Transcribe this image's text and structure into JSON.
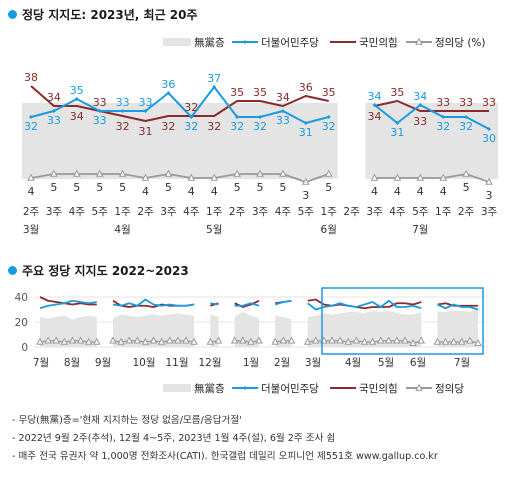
{
  "colors": {
    "dpk": "#1a9be0",
    "ppp": "#8b2a2a",
    "justice": "#999999",
    "none": "#e4e4e4",
    "box": "#1a9be0"
  },
  "titles": {
    "top": "정당 지지도: 2023년, 최근 20주",
    "bottom": "주요 정당 지지도 2022~2023"
  },
  "legend": [
    "無黨층",
    "더불어민주당",
    "국민의힘",
    "정의당 (%)"
  ],
  "legend_bottom": [
    "無黨층",
    "더불어민주당",
    "국민의힘",
    "정의당"
  ],
  "notes": [
    "- 무당(無黨)층='현재 지지하는 정당 없음/모름/응답거절'",
    "- 2022년 9월 2주(추석), 12월 4~5주, 2023년 1월 4주(설), 6월 2주 조사 쉼",
    "- 매주 전국 유권자 약 1,000명 전화조사(CATI). 한국갤럽 데일리 오피니언 제551호 www.gallup.co.kr"
  ],
  "chart_data": [
    {
      "type": "line",
      "title": "정당 지지도: 2023년, 최근 20주",
      "x": [
        "2주",
        "3주",
        "4주",
        "5주",
        "1주",
        "2주",
        "3주",
        "4주",
        "1주",
        "2주",
        "3주",
        "4주",
        "5주",
        "1주",
        "2주",
        "3주",
        "4주",
        "5주",
        "1주",
        "2주",
        "3주"
      ],
      "month_labels": [
        {
          "at": 0,
          "label": "3월"
        },
        {
          "at": 4,
          "label": "4월"
        },
        {
          "at": 8,
          "label": "5월"
        },
        {
          "at": 13,
          "label": "6월"
        },
        {
          "at": 17,
          "label": "7월"
        }
      ],
      "series": [
        {
          "name": "더불어민주당",
          "values": [
            32,
            33,
            35,
            33,
            33,
            33,
            36,
            32,
            37,
            32,
            32,
            33,
            31,
            32,
            null,
            34,
            31,
            34,
            32,
            32,
            30
          ]
        },
        {
          "name": "국민의힘",
          "values": [
            38,
            34,
            34,
            33,
            32,
            31,
            32,
            32,
            32,
            35,
            35,
            34,
            36,
            35,
            null,
            34,
            35,
            33,
            33,
            33,
            33
          ]
        },
        {
          "name": "정의당",
          "values": [
            4,
            5,
            5,
            5,
            5,
            4,
            5,
            4,
            4,
            5,
            5,
            5,
            3,
            5,
            null,
            4,
            4,
            4,
            4,
            5,
            3
          ]
        },
        {
          "name": "無黨층",
          "type": "area",
          "note": "values not labeled; shown as shaded area"
        }
      ],
      "gaps": [
        14
      ],
      "ylim": [
        0,
        45
      ]
    },
    {
      "type": "line",
      "title": "주요 정당 지지도 2022~2023",
      "x_ticks": [
        "7월",
        "8월",
        "9월",
        "10월",
        "11월",
        "12월",
        "1월",
        "2월",
        "3월",
        "4월",
        "5월",
        "6월",
        "7월"
      ],
      "ylim": [
        0,
        40
      ],
      "y_ticks": [
        0,
        20,
        40
      ],
      "series": [
        {
          "name": "더불어민주당",
          "values": [
            31,
            33,
            34,
            35,
            37,
            36,
            35,
            36,
            null,
            34,
            33,
            35,
            33,
            38,
            34,
            33,
            34,
            33,
            33,
            34,
            null,
            35,
            34,
            null,
            33,
            33,
            35,
            33,
            null,
            34,
            36,
            37,
            null,
            35,
            30,
            32,
            33,
            35,
            33,
            32,
            34,
            36,
            32,
            37,
            32,
            32,
            33,
            31,
            null,
            34,
            31,
            34,
            32,
            32,
            30
          ]
        },
        {
          "name": "국민의힘",
          "values": [
            40,
            37,
            36,
            35,
            34,
            35,
            34,
            34,
            null,
            37,
            33,
            32,
            33,
            33,
            32,
            34,
            33,
            33,
            33,
            34,
            null,
            33,
            35,
            null,
            35,
            32,
            34,
            37,
            null,
            35,
            36,
            37,
            null,
            37,
            38,
            34,
            33,
            34,
            33,
            32,
            31,
            32,
            32,
            32,
            35,
            35,
            34,
            36,
            null,
            34,
            35,
            33,
            33,
            33,
            33
          ]
        },
        {
          "name": "정의당",
          "values": [
            4,
            5,
            5,
            4,
            5,
            5,
            4,
            4,
            null,
            5,
            4,
            5,
            5,
            4,
            5,
            4,
            5,
            5,
            5,
            4,
            null,
            4,
            5,
            null,
            5,
            5,
            4,
            5,
            null,
            4,
            5,
            5,
            null,
            4,
            5,
            5,
            5,
            5,
            4,
            5,
            4,
            4,
            5,
            5,
            5,
            5,
            3,
            5,
            null,
            4,
            4,
            4,
            4,
            5,
            3
          ]
        },
        {
          "name": "無黨층",
          "type": "area",
          "values": [
            24,
            23,
            24,
            25,
            22,
            24,
            25,
            24,
            null,
            23,
            26,
            25,
            24,
            25,
            26,
            25,
            26,
            27,
            26,
            25,
            null,
            26,
            24,
            null,
            24,
            28,
            25,
            23,
            null,
            25,
            24,
            22,
            null,
            24,
            25,
            27,
            26,
            27,
            28,
            28,
            27,
            29,
            28,
            29,
            27,
            26,
            26,
            28,
            null,
            28,
            28,
            29,
            29,
            28,
            31
          ]
        }
      ],
      "highlight_box": "2023년 3월~7월 (최근 20주)"
    }
  ]
}
